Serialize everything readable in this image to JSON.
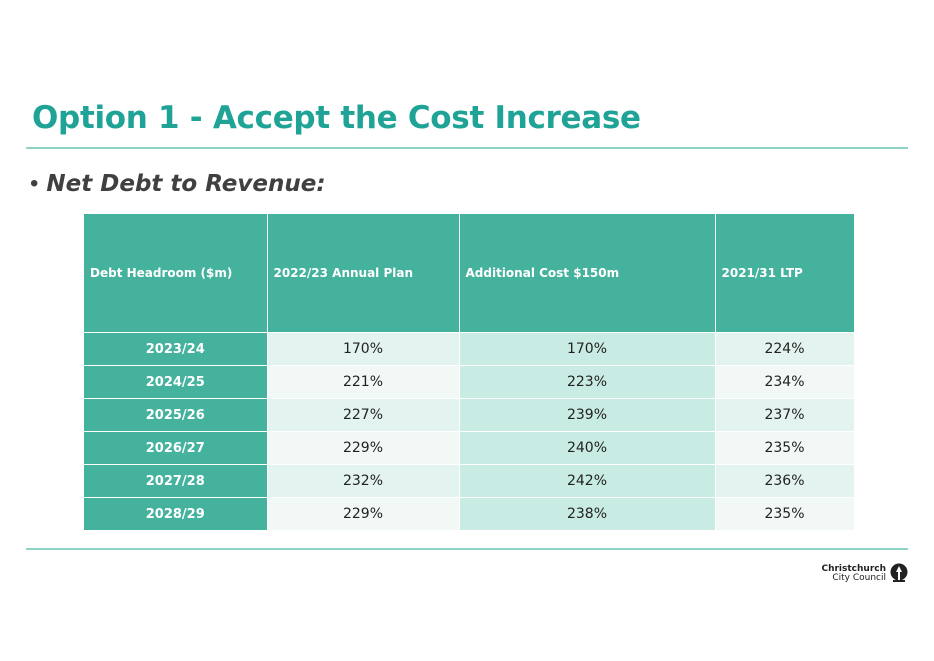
{
  "slide": {
    "title": "Option 1 - Accept the Cost Increase",
    "bullet_symbol": "•",
    "bullet_text": "Net Debt to Revenue:"
  },
  "table": {
    "headers": [
      "Debt Headroom ($m)",
      "2022/23 Annual Plan",
      "Additional Cost  $150m",
      "2021/31 LTP"
    ],
    "rows": [
      {
        "year": "2023/24",
        "annual_plan": "170%",
        "additional_cost": "170%",
        "ltp": "224%"
      },
      {
        "year": "2024/25",
        "annual_plan": "221%",
        "additional_cost": "223%",
        "ltp": "234%"
      },
      {
        "year": "2025/26",
        "annual_plan": "227%",
        "additional_cost": "239%",
        "ltp": "237%"
      },
      {
        "year": "2026/27",
        "annual_plan": "229%",
        "additional_cost": "240%",
        "ltp": "235%"
      },
      {
        "year": "2027/28",
        "annual_plan": "232%",
        "additional_cost": "242%",
        "ltp": "236%"
      },
      {
        "year": "2028/29",
        "annual_plan": "229%",
        "additional_cost": "238%",
        "ltp": "235%"
      }
    ]
  },
  "logo": {
    "line1": "Christchurch",
    "line2": "City Council",
    "icon": "cathedral-tree-icon"
  },
  "colors": {
    "title": "#1fa396",
    "header_bg": "#45b29d",
    "rule": "#8fd3c6"
  }
}
